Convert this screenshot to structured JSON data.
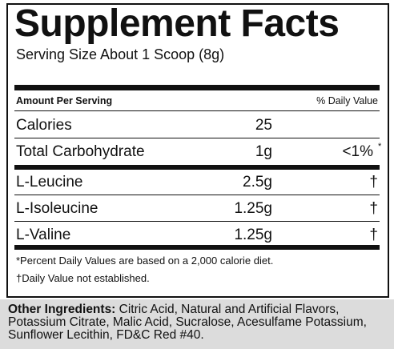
{
  "header": {
    "title": "Supplement Facts",
    "serving_size": "Serving Size About 1 Scoop (8g)"
  },
  "table": {
    "columns": [
      "Amount Per Serving",
      "% Daily Value"
    ],
    "rows": [
      {
        "name": "Calories",
        "amount": "25"
      },
      {
        "name": "Total Carbohydrate",
        "amount": "1g",
        "daily_value": "<1%",
        "note_mark": "*"
      },
      {
        "name": "L-Leucine",
        "amount": "2.5g",
        "daily_value": "†"
      },
      {
        "name": "L-Isoleucine",
        "amount": "1.25g",
        "daily_value": "†"
      },
      {
        "name": "L-Valine",
        "amount": "1.25g",
        "daily_value": "†"
      }
    ]
  },
  "footnotes": [
    "*Percent Daily Values are based on a 2,000 calorie diet.",
    "†Daily Value not established."
  ],
  "other_ingredients": {
    "label": "Other Ingredients:",
    "text": "Citric Acid, Natural and Artificial Flavors, Potassium Citrate, Malic Acid, Sucralose, Acesulfame Potassium, Sunflower Lecithin, FD&C Red #40."
  }
}
